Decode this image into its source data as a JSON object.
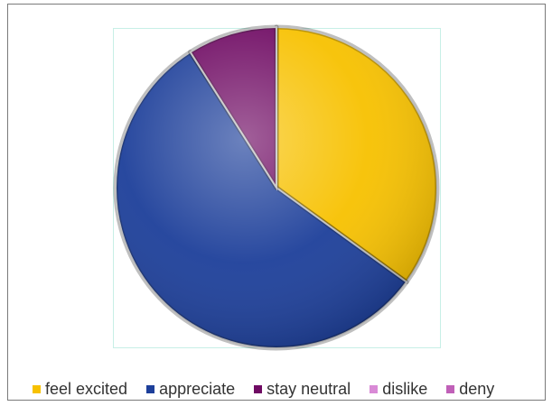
{
  "chart_data": {
    "type": "pie",
    "title": "",
    "style": "3d-beveled",
    "legend_position": "bottom",
    "slices": [
      {
        "label": "feel excited",
        "value": 35,
        "color": "#f7c100"
      },
      {
        "label": "appreciate",
        "value": 56,
        "color": "#1d3f9a"
      },
      {
        "label": "stay neutral",
        "value": 9,
        "color": "#6f0a63"
      },
      {
        "label": "dislike",
        "value": 0,
        "color": "#d98ad6"
      },
      {
        "label": "deny",
        "value": 0,
        "color": "#c060b8"
      }
    ]
  }
}
